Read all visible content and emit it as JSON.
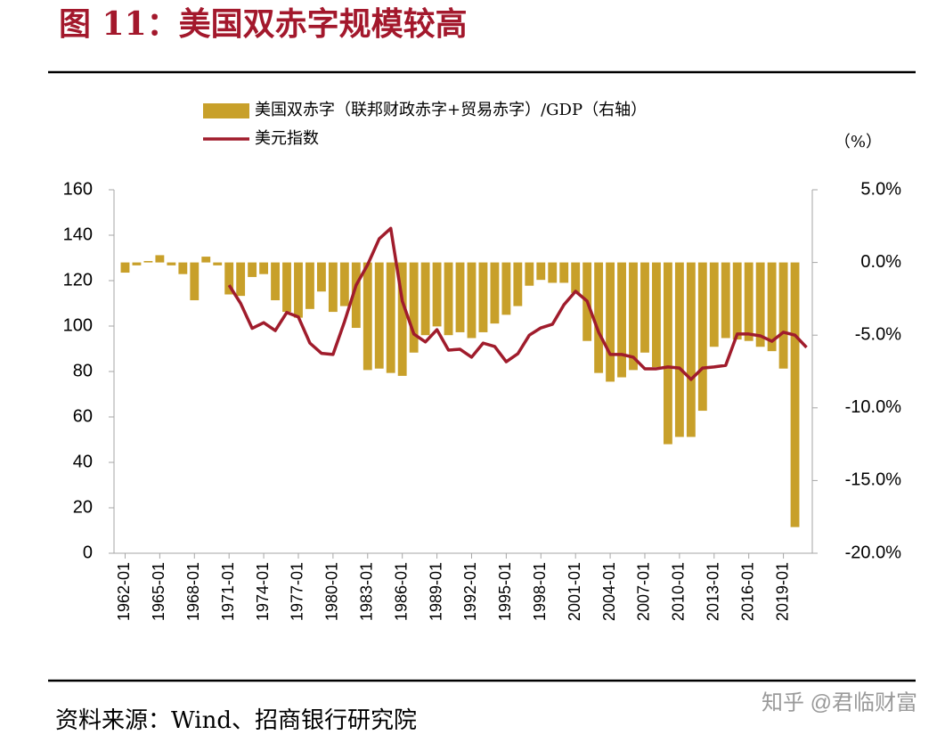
{
  "title": "图 11：美国双赤字规模较高",
  "source": "资料来源：Wind、招商银行研究院",
  "watermark": "知乎 @君临财富",
  "chart_data": {
    "type": "bar-line",
    "y2_unit": "（%）",
    "categories": [
      "1962-01",
      null,
      null,
      "1965-01",
      null,
      null,
      "1968-01",
      null,
      null,
      "1971-01",
      null,
      null,
      "1974-01",
      null,
      null,
      "1977-01",
      null,
      null,
      "1980-01",
      null,
      null,
      "1983-01",
      null,
      null,
      "1986-01",
      null,
      null,
      "1989-01",
      null,
      null,
      "1992-01",
      null,
      null,
      "1995-01",
      null,
      null,
      "1998-01",
      null,
      null,
      "2001-01",
      null,
      null,
      "2004-01",
      null,
      null,
      "2007-01",
      null,
      null,
      "2010-01",
      null,
      null,
      "2013-01",
      null,
      null,
      "2016-01",
      null,
      null,
      "2019-01",
      null,
      null
    ],
    "series": [
      {
        "name": "美国双赤字（联邦财政赤字+贸易赤字）/GDP（右轴）",
        "type": "bar",
        "axis": "y2",
        "color": "#c8a02a",
        "values": [
          -0.7,
          -0.2,
          0.1,
          0.5,
          -0.2,
          -0.8,
          -2.6,
          0.4,
          -0.2,
          -2.2,
          -2.3,
          -1.0,
          -0.8,
          -2.6,
          -3.4,
          -3.8,
          -3.2,
          -2.0,
          -3.4,
          -3.0,
          -4.5,
          -7.4,
          -7.3,
          -7.6,
          -7.8,
          -6.2,
          -5.0,
          -4.4,
          -5.0,
          -4.8,
          -5.2,
          -4.8,
          -4.2,
          -3.6,
          -3.0,
          -1.6,
          -1.2,
          -1.4,
          -1.4,
          -2.1,
          -5.4,
          -7.6,
          -8.2,
          -7.9,
          -7.4,
          -6.2,
          -7.2,
          -12.5,
          -12.0,
          -12.0,
          -10.2,
          -5.8,
          -5.2,
          -5.3,
          -5.4,
          -5.8,
          -6.1,
          -7.3,
          -18.2,
          null
        ]
      },
      {
        "name": "美元指数",
        "type": "line",
        "color": "#a01c2c",
        "values": [
          null,
          null,
          null,
          null,
          null,
          null,
          null,
          null,
          null,
          118,
          110,
          99,
          101.5,
          98,
          106,
          104,
          92.5,
          88,
          87.5,
          102,
          118,
          127,
          138.4,
          143,
          111,
          96.5,
          93,
          98.4,
          89.4,
          89.8,
          86.3,
          92.5,
          91,
          84.3,
          87.8,
          96,
          99.2,
          100.8,
          109.4,
          115.3,
          111,
          97.3,
          87.5,
          87.5,
          86.3,
          81.2,
          81.2,
          82,
          81.5,
          76.5,
          81.5,
          82,
          82.7,
          96.5,
          96.5,
          95.7,
          93.3,
          97.3,
          96,
          90.6
        ]
      }
    ],
    "ylim": [
      0,
      160
    ],
    "yticks": [
      0,
      20,
      40,
      60,
      80,
      100,
      120,
      140,
      160
    ],
    "y2lim": [
      -20,
      5
    ],
    "y2ticks": [
      {
        "value": -20,
        "label": "-20.0%"
      },
      {
        "value": -15,
        "label": "-15.0%"
      },
      {
        "value": -10,
        "label": "-10.0%"
      },
      {
        "value": -5,
        "label": "-5.0%"
      },
      {
        "value": 0,
        "label": "0.0%"
      },
      {
        "value": 5,
        "label": "5.0%"
      }
    ],
    "grid": false
  }
}
